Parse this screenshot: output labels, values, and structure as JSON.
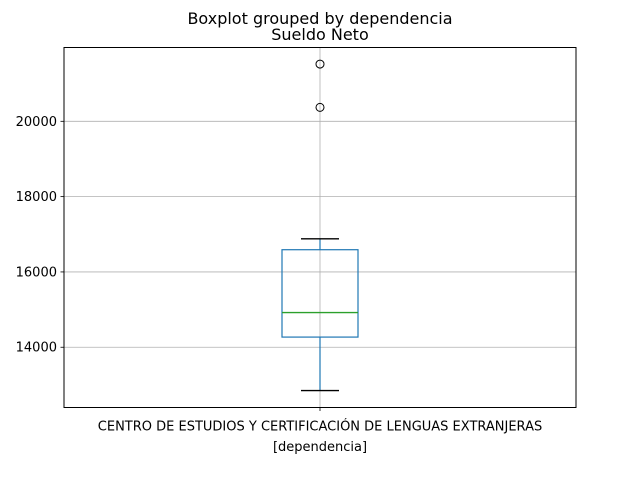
{
  "chart_data": {
    "type": "boxplot",
    "suptitle": "Boxplot grouped by dependencia",
    "title": "Sueldo Neto",
    "xlabel": "[dependencia]",
    "ylabel": "",
    "categories": [
      "CENTRO DE ESTUDIOS Y CERTIFICACIÓN DE LENGUAS EXTRANJERAS"
    ],
    "boxes": [
      {
        "category": "CENTRO DE ESTUDIOS Y CERTIFICACIÓN DE LENGUAS EXTRANJERAS",
        "whisker_low": 12850,
        "q1": 14270,
        "median": 14920,
        "q3": 16590,
        "whisker_high": 16880,
        "outliers": [
          20370,
          21520
        ]
      }
    ],
    "ylim": [
      12400,
      21960
    ],
    "yticks": [
      14000,
      16000,
      18000,
      20000
    ],
    "ytick_labels": [
      "14000",
      "16000",
      "18000",
      "20000"
    ],
    "grid": true,
    "colors": {
      "box": "#1f77b4",
      "median": "#2ca02c",
      "whisker": "#1f77b4",
      "cap": "#000000",
      "outlier": "#000000",
      "grid": "#b0b0b0",
      "frame": "#000000"
    }
  }
}
